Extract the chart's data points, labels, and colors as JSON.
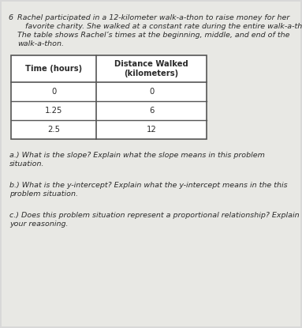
{
  "problem_number": "6",
  "problem_text_line1": "Rachel participated in a 12-kilometer walk-a-thon to raise money for her",
  "problem_text_line2": "favorite charity. She walked at a constant rate during the entire walk-a-thon.",
  "problem_text_line3": "The table shows Rachel’s times at the beginning, middle, and end of the",
  "problem_text_line4": "walk-a-thon.",
  "table_header_col1": "Time (hours)",
  "table_header_col2": "Distance Walked\n(kilometers)",
  "table_data": [
    [
      "0",
      "0"
    ],
    [
      "1.25",
      "6"
    ],
    [
      "2.5",
      "12"
    ]
  ],
  "question_a_line1": "a.) What is the slope? Explain what the slope means in this problem",
  "question_a_line2": "situation.",
  "question_b_line1": "b.) What is the y-intercept? Explain what the y-intercept means in the this",
  "question_b_line2": "problem situation.",
  "question_c_line1": "c.) Does this problem situation represent a proportional relationship? Explain",
  "question_c_line2": "your reasoning.",
  "bg_color": "#d8d8d8",
  "page_color": "#e8e8e4",
  "text_color": "#2a2a2a",
  "table_border_color": "#555555",
  "font_size_body": 6.8,
  "font_size_table": 7.2,
  "fig_width": 3.83,
  "fig_height": 4.15,
  "dpi": 100
}
